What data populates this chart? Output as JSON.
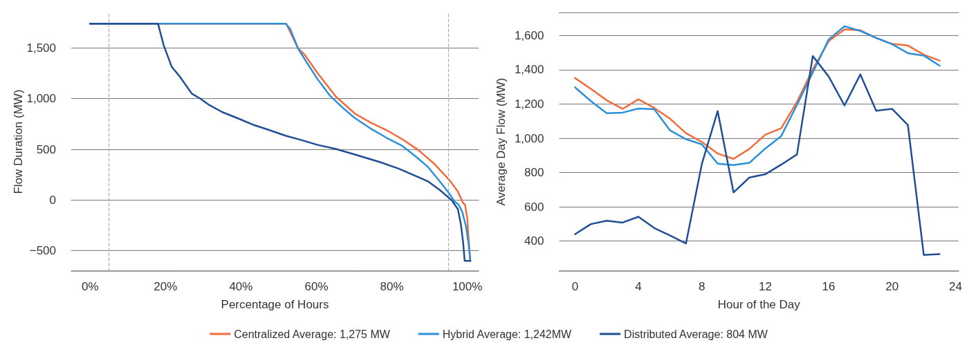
{
  "chart_data": [
    {
      "type": "line",
      "xlabel": "Percentage of Hours",
      "ylabel": "Flow Duration (MW)",
      "xlim": [
        -5,
        103
      ],
      "ylim": [
        -700,
        1850
      ],
      "xticks": [
        {
          "value": 0,
          "label": "0%"
        },
        {
          "value": 20,
          "label": "20%"
        },
        {
          "value": 40,
          "label": "40%"
        },
        {
          "value": 60,
          "label": "60%"
        },
        {
          "value": 80,
          "label": "80%"
        },
        {
          "value": 100,
          "label": "100%"
        }
      ],
      "yticks": [
        {
          "value": -500,
          "label": "−500"
        },
        0,
        500,
        {
          "value": 1000,
          "label": "1,000"
        },
        {
          "value": 1500,
          "label": "1,500"
        }
      ],
      "grid": "y",
      "legend": "bottom",
      "marker": "none",
      "line_style": "solid",
      "ref_lines": [
        {
          "axis": "x",
          "value": 5,
          "color": "#aaaaaa",
          "line_style": "dashed"
        },
        {
          "axis": "x",
          "value": 95,
          "color": "#aaaaaa",
          "line_style": "dashed"
        }
      ],
      "series": [
        {
          "name": "Centralized Average: 1,275 MW",
          "color": "#f26b3a",
          "x": [
            0,
            52,
            55.1,
            56.8,
            60.2,
            65.2,
            70.2,
            74.4,
            78.6,
            82.8,
            87,
            91.2,
            95.3,
            97.4,
            98.9,
            99.4,
            100,
            100.3,
            100.8
          ],
          "values": [
            1740,
            1740,
            1497,
            1437,
            1257,
            1018,
            853,
            763,
            689,
            599,
            494,
            359,
            195,
            90,
            -30,
            -45,
            -180,
            -359,
            -600
          ]
        },
        {
          "name": "Hybrid Average: 1,242MW",
          "color": "#2b90d9",
          "x": [
            0,
            51.8,
            53,
            55.1,
            57.6,
            60.2,
            63.5,
            66.9,
            70.2,
            74.4,
            78.6,
            82.8,
            86.2,
            89.5,
            92.8,
            95.3,
            96.6,
            97.7,
            98.7,
            99.7,
            100.3,
            100.8
          ],
          "values": [
            1740,
            1740,
            1691,
            1497,
            1347,
            1198,
            1033,
            913,
            808,
            704,
            614,
            533,
            434,
            329,
            180,
            60,
            -15,
            -45,
            -120,
            -269,
            -419,
            -600
          ]
        },
        {
          "name": "Distributed Average: 804 MW",
          "color": "#1f4e96",
          "x": [
            0,
            18,
            19.5,
            21.6,
            23.7,
            27,
            29.1,
            31.6,
            35,
            40,
            43.4,
            47.6,
            51.8,
            55.9,
            60.2,
            65.2,
            70.2,
            76.9,
            81.9,
            85.3,
            89.5,
            92.8,
            95.8,
            97.5,
            98.3,
            98.9,
            99.3,
            100.8
          ],
          "values": [
            1740,
            1740,
            1527,
            1317,
            1221,
            1048,
            1003,
            937,
            868,
            793,
            740,
            689,
            635,
            593,
            545,
            503,
            449,
            374,
            308,
            254,
            186,
            96,
            0,
            -90,
            -240,
            -419,
            -600,
            -600
          ]
        }
      ]
    },
    {
      "type": "line",
      "xlabel": "Hour of the Day",
      "ylabel": "Average Day Flow (MW)",
      "xlim": [
        -1,
        24.2
      ],
      "ylim": [
        225,
        1735
      ],
      "xticks": [
        0,
        4,
        8,
        12,
        16,
        20,
        24
      ],
      "yticks": [
        400,
        600,
        800,
        {
          "value": 1000,
          "label": "1,000"
        },
        {
          "value": 1200,
          "label": "1,200"
        },
        {
          "value": 1400,
          "label": "1,400"
        },
        {
          "value": 1600,
          "label": "1,600"
        }
      ],
      "grid": "y",
      "marker": "none",
      "line_style": "solid",
      "x": [
        0,
        1,
        2,
        3,
        4,
        5,
        6,
        7,
        8,
        9,
        10,
        11,
        12,
        13,
        14,
        15,
        16,
        17,
        18,
        19,
        20,
        21,
        22,
        23
      ],
      "series": [
        {
          "color": "#f26b3a",
          "values": [
            1352,
            1289,
            1222,
            1172,
            1228,
            1177,
            1114,
            1030,
            979,
            911,
            880,
            938,
            1021,
            1058,
            1213,
            1402,
            1567,
            1636,
            1631,
            1586,
            1551,
            1542,
            1488,
            1454
          ]
        },
        {
          "color": "#2b90d9",
          "values": [
            1298,
            1217,
            1147,
            1150,
            1174,
            1170,
            1046,
            995,
            965,
            852,
            844,
            857,
            940,
            1012,
            1195,
            1384,
            1577,
            1654,
            1627,
            1586,
            1550,
            1497,
            1483,
            1424
          ]
        },
        {
          "color": "#1f4e96",
          "values": [
            440,
            499,
            519,
            508,
            542,
            476,
            432,
            386,
            850,
            1159,
            684,
            771,
            790,
            846,
            906,
            1481,
            1361,
            1192,
            1373,
            1161,
            1172,
            1077,
            319,
            324
          ]
        }
      ]
    }
  ]
}
